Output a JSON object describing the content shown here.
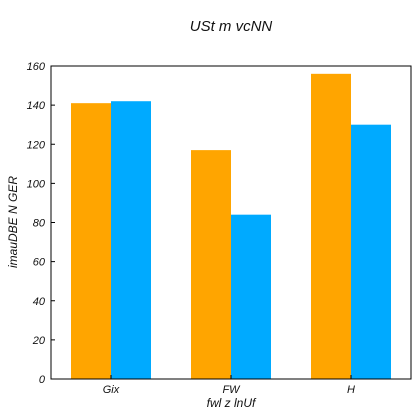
{
  "chart_data": {
    "type": "bar",
    "title": "USt m vcNN",
    "xlabel": "fwl z lnUf",
    "ylabel": "imauDBE N GER",
    "categories": [
      "Gix",
      "FW",
      "H"
    ],
    "series": [
      {
        "values": [
          141,
          117,
          156
        ],
        "color": "#ffa500"
      },
      {
        "values": [
          142,
          84,
          130
        ],
        "color": "#00aaff"
      }
    ],
    "ylim": [
      0,
      160
    ],
    "yticks": [
      0,
      20,
      40,
      60,
      80,
      100,
      120,
      140,
      160
    ],
    "grid": false,
    "legend": "none"
  }
}
